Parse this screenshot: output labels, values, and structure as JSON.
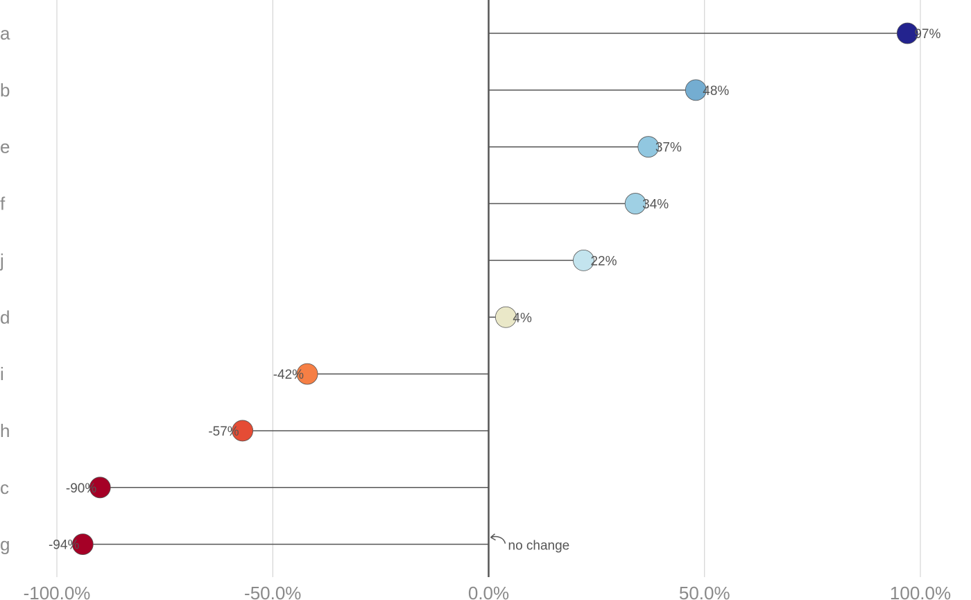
{
  "chart_data": {
    "type": "lollipop",
    "categories": [
      "a",
      "b",
      "e",
      "f",
      "j",
      "d",
      "i",
      "h",
      "c",
      "g"
    ],
    "values": [
      97,
      48,
      37,
      34,
      22,
      4,
      -42,
      -57,
      -90,
      -94
    ],
    "value_labels": [
      "97%",
      "48%",
      "37%",
      "34%",
      "22%",
      "4%",
      "-42%",
      "-57%",
      "-90%",
      "-94%"
    ],
    "colors": [
      "#23238e",
      "#74add1",
      "#91c7e0",
      "#9fd0e4",
      "#c3e4ee",
      "#eae8c8",
      "#f67f45",
      "#e54c35",
      "#a50026",
      "#a50026"
    ],
    "xlim": [
      -100,
      100
    ],
    "xticks": [
      -100,
      -50,
      0,
      50,
      100
    ],
    "xtick_labels": [
      "-100.0%",
      "-50.0%",
      "0.0%",
      "50.0%",
      "100.0%"
    ],
    "grid": true,
    "annotation": "no change"
  }
}
